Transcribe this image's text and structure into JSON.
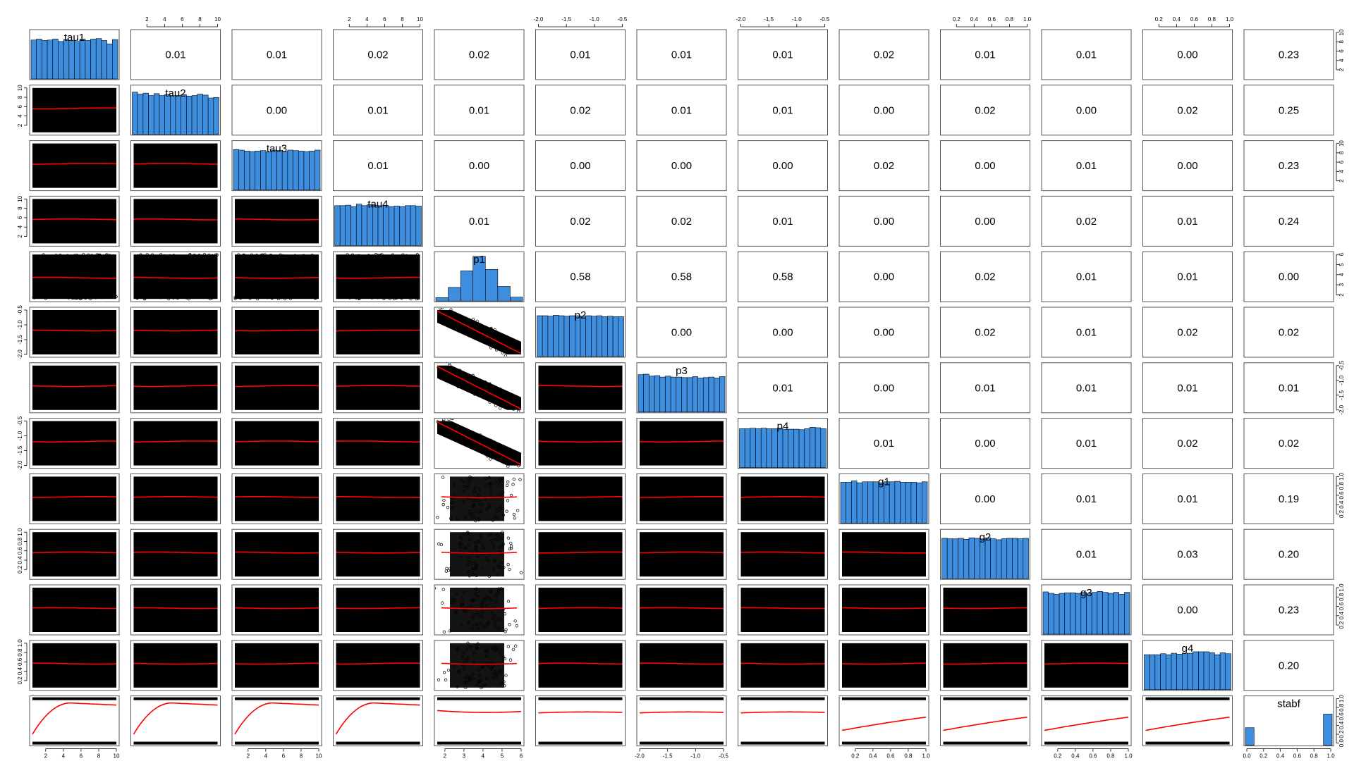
{
  "chart_data": {
    "type": "scatter",
    "subtype": "pairs-matrix",
    "variables": [
      "tau1",
      "tau2",
      "tau3",
      "tau4",
      "p1",
      "p2",
      "p3",
      "p4",
      "g1",
      "g2",
      "g3",
      "g4",
      "stabf"
    ],
    "correlations": [
      [
        "0.01",
        "0.01",
        "0.02",
        "0.02",
        "0.01",
        "0.01",
        "0.01",
        "0.02",
        "0.01",
        "0.01",
        "0.00",
        "0.23"
      ],
      [
        "0.00",
        "0.01",
        "0.01",
        "0.02",
        "0.01",
        "0.01",
        "0.00",
        "0.02",
        "0.00",
        "0.02",
        "0.25"
      ],
      [
        "0.01",
        "0.00",
        "0.00",
        "0.00",
        "0.00",
        "0.02",
        "0.00",
        "0.01",
        "0.00",
        "0.23"
      ],
      [
        "0.01",
        "0.02",
        "0.02",
        "0.01",
        "0.00",
        "0.00",
        "0.02",
        "0.01",
        "0.24"
      ],
      [
        "0.58",
        "0.58",
        "0.58",
        "0.00",
        "0.02",
        "0.01",
        "0.01",
        "0.00"
      ],
      [
        "0.00",
        "0.00",
        "0.00",
        "0.02",
        "0.01",
        "0.02",
        "0.02"
      ],
      [
        "0.01",
        "0.00",
        "0.01",
        "0.01",
        "0.01",
        "0.01"
      ],
      [
        "0.01",
        "0.00",
        "0.01",
        "0.02",
        "0.02"
      ],
      [
        "0.00",
        "0.01",
        "0.01",
        "0.19"
      ],
      [
        "0.01",
        "0.03",
        "0.20"
      ],
      [
        "0.00",
        "0.23"
      ],
      [
        "0.20"
      ]
    ],
    "axis_ticks": {
      "tau": [
        "2",
        "4",
        "6",
        "8",
        "10"
      ],
      "p1": [
        "2",
        "3",
        "4",
        "5",
        "6"
      ],
      "p": [
        "-2.0",
        "-1.5",
        "-1.0",
        "-0.5"
      ],
      "g": [
        "0.2",
        "0.4",
        "0.6",
        "0.8",
        "1.0"
      ],
      "stabf": [
        "0.0",
        "0.2",
        "0.4",
        "0.6",
        "0.8",
        "1.0"
      ]
    },
    "ranges": {
      "tau": [
        0.5,
        10
      ],
      "p1": [
        1.6,
        6
      ],
      "p": [
        -2.0,
        -0.5
      ],
      "g": [
        0.05,
        1.0
      ],
      "stabf": [
        0,
        1
      ]
    },
    "histograms": {
      "tau1": [
        0.8,
        0.82,
        0.79,
        0.8,
        0.82,
        0.77,
        0.81,
        0.79,
        0.77,
        0.82,
        0.79,
        0.82,
        0.83,
        0.79,
        0.72,
        0.81
      ],
      "tau2": [
        0.87,
        0.83,
        0.85,
        0.8,
        0.84,
        0.8,
        0.82,
        0.8,
        0.8,
        0.82,
        0.79,
        0.8,
        0.83,
        0.81,
        0.75,
        0.76
      ],
      "tau3": [
        0.83,
        0.82,
        0.8,
        0.79,
        0.8,
        0.81,
        0.78,
        0.82,
        0.81,
        0.79,
        0.82,
        0.81,
        0.8,
        0.79,
        0.8,
        0.82
      ],
      "tau4": [
        0.82,
        0.82,
        0.83,
        0.8,
        0.85,
        0.82,
        0.84,
        0.83,
        0.82,
        0.82,
        0.8,
        0.81,
        0.8,
        0.82,
        0.82,
        0.81
      ],
      "p1": [
        0.07,
        0.28,
        0.62,
        0.92,
        0.65,
        0.3,
        0.08
      ],
      "p2": [
        0.84,
        0.84,
        0.83,
        0.85,
        0.84,
        0.83,
        0.84,
        0.84,
        0.83,
        0.84,
        0.83,
        0.84,
        0.82,
        0.83,
        0.82,
        0.82
      ],
      "p3": [
        0.77,
        0.78,
        0.74,
        0.75,
        0.72,
        0.74,
        0.72,
        0.72,
        0.71,
        0.71,
        0.73,
        0.7,
        0.71,
        0.72,
        0.7,
        0.73
      ],
      "p4": [
        0.8,
        0.8,
        0.81,
        0.8,
        0.81,
        0.8,
        0.8,
        0.81,
        0.79,
        0.79,
        0.79,
        0.78,
        0.8,
        0.83,
        0.82,
        0.8
      ],
      "g1": [
        0.84,
        0.84,
        0.87,
        0.83,
        0.85,
        0.85,
        0.85,
        0.83,
        0.85,
        0.85,
        0.86,
        0.84,
        0.84,
        0.84,
        0.83,
        0.85
      ],
      "g2": [
        0.83,
        0.82,
        0.82,
        0.83,
        0.81,
        0.84,
        0.83,
        0.82,
        0.84,
        0.82,
        0.8,
        0.82,
        0.83,
        0.83,
        0.82,
        0.83
      ],
      "g3": [
        0.87,
        0.84,
        0.82,
        0.84,
        0.85,
        0.85,
        0.84,
        0.86,
        0.84,
        0.86,
        0.88,
        0.86,
        0.84,
        0.86,
        0.82,
        0.86
      ],
      "g4": [
        0.72,
        0.72,
        0.72,
        0.74,
        0.72,
        0.75,
        0.73,
        0.75,
        0.75,
        0.78,
        0.78,
        0.78,
        0.76,
        0.72,
        0.76,
        0.74
      ],
      "stabf": [
        0.36,
        0,
        0,
        0,
        0,
        0,
        0,
        0,
        0,
        0.64
      ]
    },
    "fit_shapes": {
      "default_rel": [
        0.46,
        0.46,
        0.46
      ],
      "p_vs_p1": [
        0.02,
        0.5,
        0.98
      ],
      "stabf_vs_tau": [
        0.78,
        0.2,
        0.12,
        0.18
      ],
      "stabf_vs_p1": [
        0.28,
        0.32,
        0.3
      ],
      "stabf_vs_p": [
        0.33,
        0.31,
        0.32
      ],
      "stabf_vs_g": [
        0.7,
        0.55,
        0.42
      ]
    },
    "colors": {
      "histogram": "#3e8ee0",
      "fit_line": "#ff0000",
      "points": "#000000",
      "border": "#555555"
    }
  }
}
